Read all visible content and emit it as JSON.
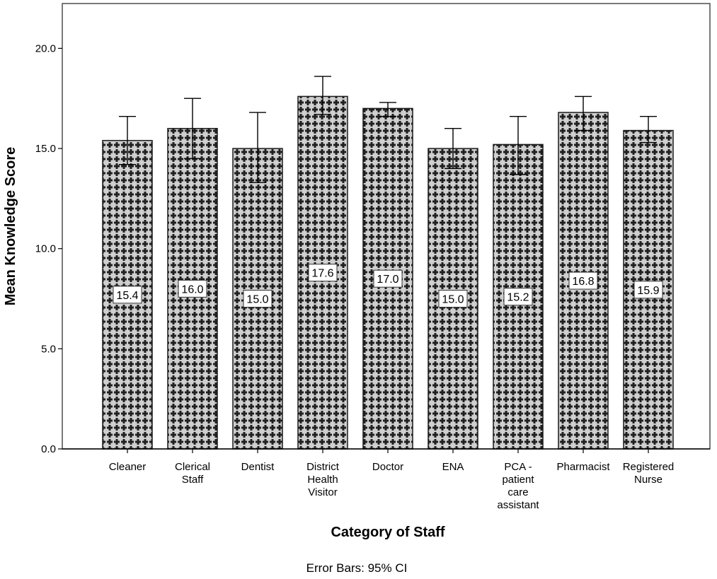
{
  "chart_data": {
    "type": "bar",
    "xlabel": "Category of Staff",
    "ylabel": "Mean Knowledge Score",
    "footnote": "Error Bars: 95% CI",
    "ylim": [
      0,
      22.2
    ],
    "yticks": [
      0.0,
      5.0,
      10.0,
      15.0,
      20.0
    ],
    "ytick_labels": [
      "0.0",
      "5.0",
      "10.0",
      "15.0",
      "20.0"
    ],
    "grid": false,
    "categories": [
      [
        "Cleaner"
      ],
      [
        "Clerical",
        "Staff"
      ],
      [
        "Dentist"
      ],
      [
        "District",
        "Health",
        "Visitor"
      ],
      [
        "Doctor"
      ],
      [
        "ENA"
      ],
      [
        "PCA -",
        "patient",
        "care",
        "assistant"
      ],
      [
        "Pharmacist"
      ],
      [
        "Registered",
        "Nurse"
      ]
    ],
    "values": [
      15.4,
      16.0,
      15.0,
      17.6,
      17.0,
      15.0,
      15.2,
      16.8,
      15.9
    ],
    "value_labels": [
      "15.4",
      "16.0",
      "15.0",
      "17.6",
      "17.0",
      "15.0",
      "15.2",
      "16.8",
      "15.9"
    ],
    "ci_low": [
      14.2,
      14.5,
      13.3,
      16.7,
      16.6,
      14.0,
      13.7,
      15.9,
      15.3
    ],
    "ci_high": [
      16.6,
      17.5,
      16.8,
      18.6,
      17.3,
      16.0,
      16.6,
      17.6,
      16.6
    ],
    "colors": {
      "bar_fill": "#c8c8c8",
      "pattern": "#1a1a1a",
      "axis": "#000000",
      "frame": "#333333"
    }
  }
}
